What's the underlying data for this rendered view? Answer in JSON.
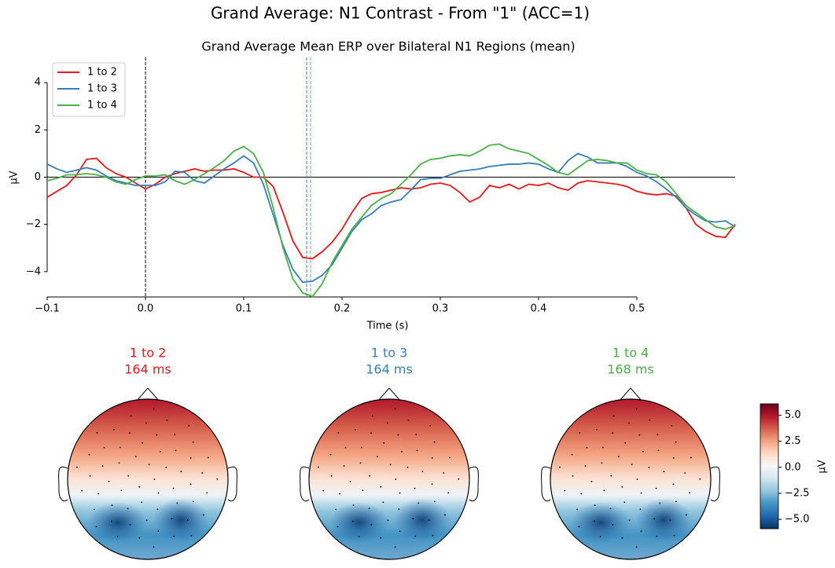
{
  "chart_data": {
    "type": "line",
    "title": "Grand Average: N1 Contrast - From \"1\" (ACC=1)",
    "subtitle": "Grand Average Mean ERP over Bilateral N1 Regions (mean)",
    "xlabel": "Time (s)",
    "ylabel": "µV",
    "xlim": [
      -0.1,
      0.6
    ],
    "ylim": [
      -5.07,
      5.07
    ],
    "xticks": [
      {
        "value": -0.1,
        "label": "−0.1"
      },
      {
        "value": 0,
        "label": "0.0"
      },
      0.1,
      0.2,
      0.3,
      0.4,
      0.5
    ],
    "yticks": [
      {
        "value": -4,
        "label": "−4"
      },
      {
        "value": -2,
        "label": "−2"
      },
      0,
      2,
      4
    ],
    "legend": "upper left",
    "vline": 0,
    "x": [
      -0.1,
      -0.09,
      -0.08,
      -0.07,
      -0.06,
      -0.05,
      -0.04,
      -0.03,
      -0.02,
      -0.01,
      0,
      0.01,
      0.02,
      0.03,
      0.04,
      0.05,
      0.06,
      0.07,
      0.08,
      0.09,
      0.1,
      0.11,
      0.12,
      0.13,
      0.14,
      0.15,
      0.16,
      0.17,
      0.18,
      0.19,
      0.2,
      0.21,
      0.22,
      0.23,
      0.24,
      0.25,
      0.26,
      0.27,
      0.28,
      0.29,
      0.3,
      0.31,
      0.32,
      0.33,
      0.34,
      0.35,
      0.36,
      0.37,
      0.38,
      0.39,
      0.4,
      0.41,
      0.42,
      0.43,
      0.44,
      0.45,
      0.46,
      0.47,
      0.48,
      0.49,
      0.5,
      0.51,
      0.52,
      0.53,
      0.54,
      0.55,
      0.56,
      0.57,
      0.58,
      0.59,
      0.6
    ],
    "series": [
      {
        "name": "1 to 2",
        "color": "#e41a1c",
        "peak_time": 0.164,
        "peak_label": "164 ms",
        "values": [
          -0.85,
          -0.6,
          -0.35,
          0.1,
          0.75,
          0.8,
          0.4,
          0.15,
          0.0,
          -0.25,
          -0.5,
          -0.3,
          0.0,
          0.15,
          0.25,
          0.35,
          0.25,
          0.3,
          0.3,
          0.35,
          0.2,
          0.0,
          0.0,
          -0.4,
          -1.5,
          -2.7,
          -3.4,
          -3.45,
          -3.15,
          -2.75,
          -2.2,
          -1.5,
          -0.9,
          -0.7,
          -0.65,
          -0.55,
          -0.45,
          -0.5,
          -0.45,
          -0.3,
          -0.25,
          -0.35,
          -0.65,
          -1.05,
          -0.85,
          -0.35,
          -0.45,
          -0.3,
          -0.5,
          -0.3,
          -0.35,
          -0.25,
          -0.45,
          -0.55,
          -0.25,
          -0.15,
          -0.2,
          -0.25,
          -0.3,
          -0.4,
          -0.6,
          -0.7,
          -0.75,
          -0.7,
          -0.8,
          -1.3,
          -2.0,
          -2.3,
          -2.5,
          -2.55,
          -2.0
        ]
      },
      {
        "name": "1 to 3",
        "color": "#377eb8",
        "peak_time": 0.164,
        "peak_label": "164 ms",
        "values": [
          0.55,
          0.35,
          0.2,
          0.3,
          0.4,
          0.3,
          0.05,
          -0.15,
          -0.25,
          -0.35,
          -0.35,
          -0.35,
          -0.2,
          0.25,
          0.2,
          -0.15,
          -0.25,
          0.05,
          0.35,
          0.6,
          0.9,
          0.6,
          -0.3,
          -1.6,
          -2.9,
          -3.9,
          -4.45,
          -4.4,
          -4.15,
          -3.7,
          -3.0,
          -2.3,
          -1.8,
          -1.55,
          -1.2,
          -1.05,
          -0.95,
          -0.55,
          -0.1,
          -0.05,
          -0.05,
          0.1,
          0.25,
          0.3,
          0.35,
          0.45,
          0.5,
          0.55,
          0.55,
          0.6,
          0.55,
          0.35,
          0.2,
          0.7,
          1.0,
          0.85,
          0.6,
          0.6,
          0.6,
          0.45,
          0.2,
          0.05,
          -0.2,
          -0.5,
          -0.85,
          -1.3,
          -1.6,
          -1.85,
          -1.9,
          -1.85,
          -2.1
        ]
      },
      {
        "name": "1 to 4",
        "color": "#4daf4a",
        "peak_time": 0.168,
        "peak_label": "168 ms",
        "values": [
          -0.15,
          -0.05,
          0.1,
          0.1,
          0.15,
          0.1,
          0.0,
          -0.2,
          -0.3,
          -0.1,
          0.05,
          0.05,
          0.1,
          -0.15,
          -0.3,
          -0.1,
          0.15,
          0.4,
          0.7,
          1.1,
          1.3,
          1.0,
          0.2,
          -1.3,
          -3.0,
          -4.3,
          -4.9,
          -5.05,
          -4.5,
          -3.6,
          -2.9,
          -2.2,
          -1.7,
          -1.2,
          -0.9,
          -0.7,
          -0.3,
          0.1,
          0.55,
          0.75,
          0.8,
          0.9,
          0.95,
          0.9,
          1.1,
          1.35,
          1.4,
          1.2,
          1.1,
          1.0,
          0.75,
          0.5,
          0.2,
          0.1,
          0.4,
          0.7,
          0.75,
          0.7,
          0.6,
          0.6,
          0.3,
          0.15,
          0.1,
          -0.2,
          -0.7,
          -1.2,
          -1.5,
          -1.8,
          -2.1,
          -2.2,
          -2.05
        ]
      }
    ],
    "colorbar": {
      "label": "µV",
      "lim": [
        -5.9,
        6.1
      ],
      "ticks": [
        {
          "value": -5,
          "label": "−5.0"
        },
        {
          "value": -2.5,
          "label": "−2.5"
        },
        {
          "value": 0,
          "label": "0.0"
        },
        {
          "value": 2.5,
          "label": "2.5"
        },
        {
          "value": 5,
          "label": "5.0"
        }
      ]
    }
  }
}
